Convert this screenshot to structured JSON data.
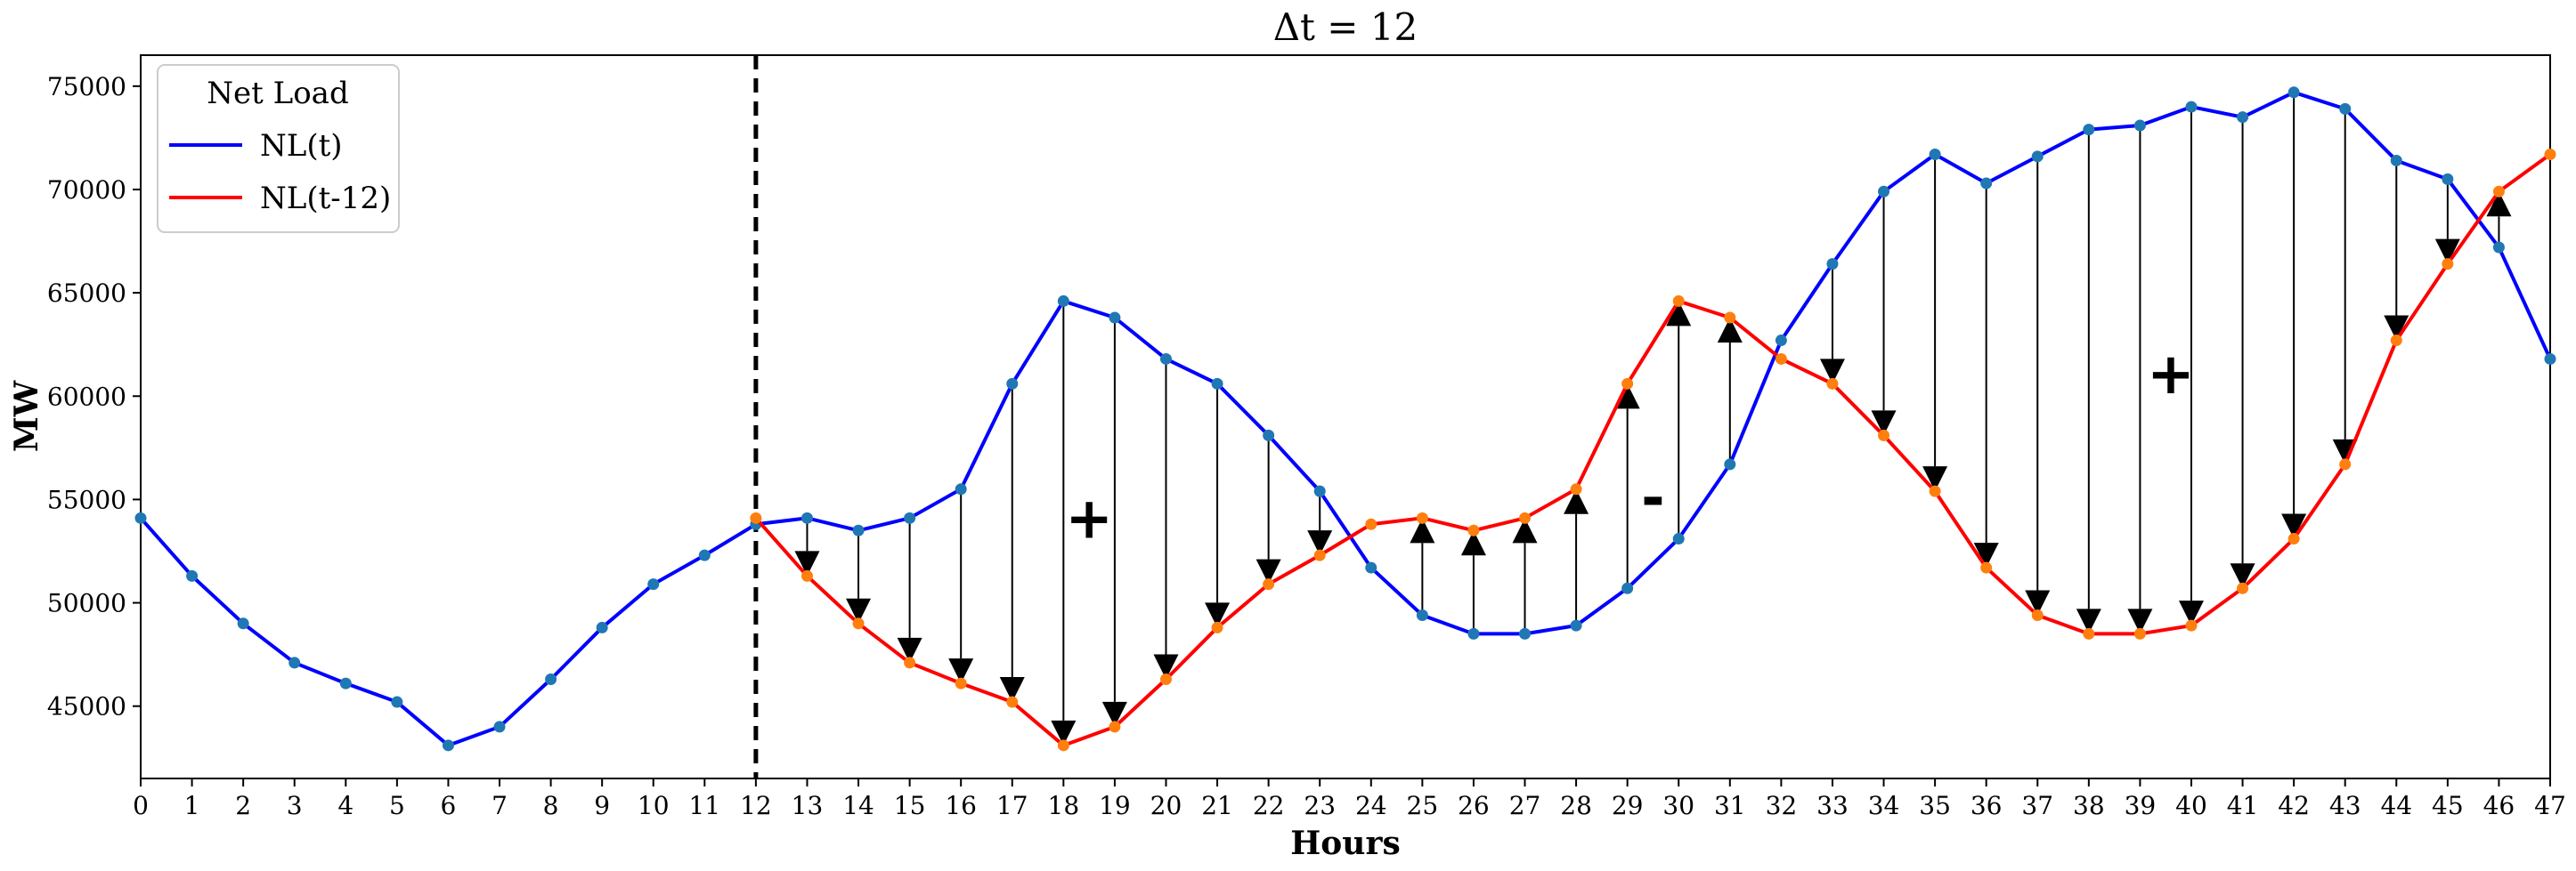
{
  "chart_data": {
    "type": "line",
    "title": "Δt = 12",
    "xlabel": "Hours",
    "ylabel": "MW",
    "xlim": [
      0,
      47
    ],
    "ylim": [
      41500,
      76500
    ],
    "x_ticks": [
      0,
      1,
      2,
      3,
      4,
      5,
      6,
      7,
      8,
      9,
      10,
      11,
      12,
      13,
      14,
      15,
      16,
      17,
      18,
      19,
      20,
      21,
      22,
      23,
      24,
      25,
      26,
      27,
      28,
      29,
      30,
      31,
      32,
      33,
      34,
      35,
      36,
      37,
      38,
      39,
      40,
      41,
      42,
      43,
      44,
      45,
      46,
      47
    ],
    "y_ticks": [
      45000,
      50000,
      55000,
      60000,
      65000,
      70000,
      75000
    ],
    "y_tick_labels": [
      "45000",
      "50000",
      "55000",
      "60000",
      "65000",
      "70000",
      "75000"
    ],
    "grid": false,
    "legend": {
      "title": "Net Load",
      "placement": "top-left"
    },
    "vline": {
      "x": 12,
      "style": "dashed",
      "color": "#000000"
    },
    "series": [
      {
        "name": "NL(t)",
        "color": "#0000ff",
        "marker_color": "#1f77b4",
        "x": [
          0,
          1,
          2,
          3,
          4,
          5,
          6,
          7,
          8,
          9,
          10,
          11,
          12,
          13,
          14,
          15,
          16,
          17,
          18,
          19,
          20,
          21,
          22,
          23,
          24,
          25,
          26,
          27,
          28,
          29,
          30,
          31,
          32,
          33,
          34,
          35,
          36,
          37,
          38,
          39,
          40,
          41,
          42,
          43,
          44,
          45,
          46,
          47
        ],
        "values": [
          54100,
          51300,
          49000,
          47100,
          46100,
          45200,
          43100,
          44000,
          46300,
          48800,
          50900,
          52300,
          53800,
          54100,
          53500,
          54100,
          55500,
          60600,
          64600,
          63800,
          61800,
          60600,
          58100,
          55400,
          51700,
          49400,
          48500,
          48500,
          48900,
          50700,
          53100,
          56700,
          62700,
          66400,
          69900,
          71700,
          70300,
          71600,
          72900,
          73100,
          74000,
          73500,
          74700,
          73900,
          71400,
          70500,
          67200,
          61800
        ]
      },
      {
        "name": "NL(t-12)",
        "color": "#ff0000",
        "marker_color": "#ff7f0e",
        "x": [
          12,
          13,
          14,
          15,
          16,
          17,
          18,
          19,
          20,
          21,
          22,
          23,
          24,
          25,
          26,
          27,
          28,
          29,
          30,
          31,
          32,
          33,
          34,
          35,
          36,
          37,
          38,
          39,
          40,
          41,
          42,
          43,
          44,
          45,
          46,
          47
        ],
        "values": [
          54100,
          51300,
          49000,
          47100,
          46100,
          45200,
          43100,
          44000,
          46300,
          48800,
          50900,
          52300,
          53800,
          54100,
          53500,
          54100,
          55500,
          60600,
          64600,
          63800,
          61800,
          60600,
          58100,
          55400,
          51700,
          49400,
          48500,
          48500,
          48900,
          50700,
          53100,
          56700,
          62700,
          66400,
          69900,
          71700
        ]
      }
    ],
    "arrows": {
      "description": "Vertical arrows from NL(t) to NL(t-12) for each hour from 13 to 46",
      "from_series": "NL(t)",
      "to_series": "NL(t-12)",
      "x": [
        13,
        14,
        15,
        16,
        17,
        18,
        19,
        20,
        21,
        22,
        23,
        25,
        26,
        27,
        28,
        29,
        30,
        31,
        33,
        34,
        35,
        36,
        37,
        38,
        39,
        40,
        41,
        42,
        43,
        44,
        45,
        46
      ],
      "head_color": "#000000"
    },
    "annotations": [
      {
        "text": "+",
        "x": 18.5,
        "y": 54000
      },
      {
        "text": "-",
        "x": 29.5,
        "y": 55000
      },
      {
        "text": "+",
        "x": 39.6,
        "y": 61000
      }
    ]
  }
}
